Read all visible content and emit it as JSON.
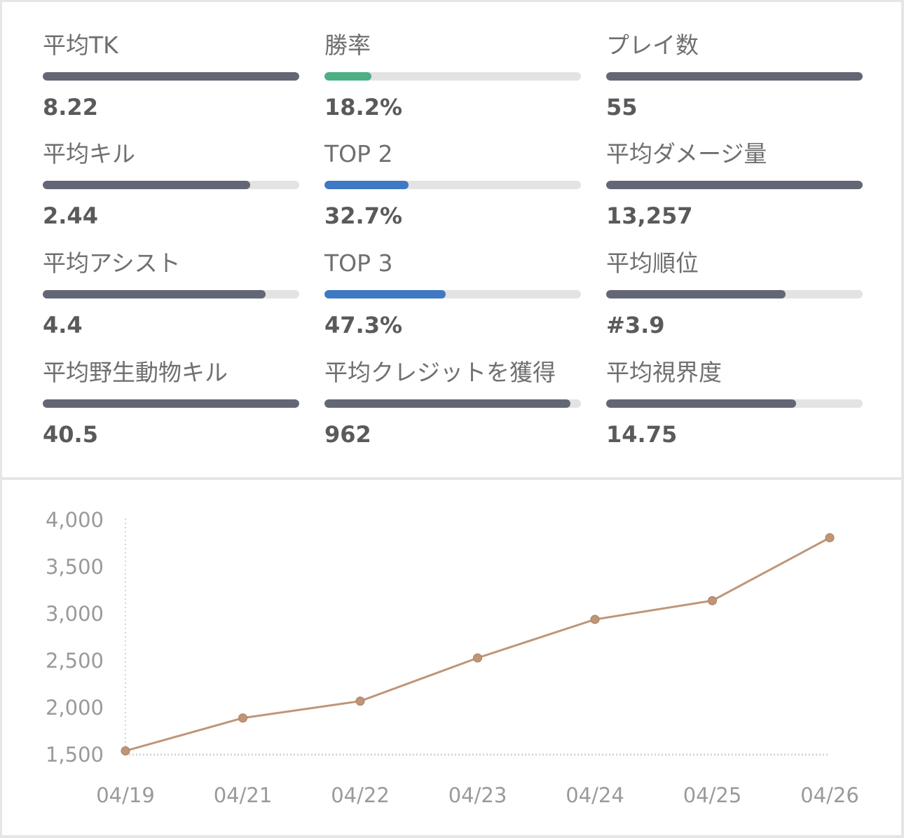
{
  "stats": [
    {
      "label": "平均TK",
      "value": "8.22",
      "fill": 1.0,
      "color": "#636675"
    },
    {
      "label": "勝率",
      "value": "18.2%",
      "fill": 0.182,
      "color": "#4caf85"
    },
    {
      "label": "プレイ数",
      "value": "55",
      "fill": 1.0,
      "color": "#636675"
    },
    {
      "label": "平均キル",
      "value": "2.44",
      "fill": 0.81,
      "color": "#636675"
    },
    {
      "label": "TOP 2",
      "value": "32.7%",
      "fill": 0.327,
      "color": "#3f78c3"
    },
    {
      "label": "平均ダメージ量",
      "value": "13,257",
      "fill": 1.0,
      "color": "#636675"
    },
    {
      "label": "平均アシスト",
      "value": "4.4",
      "fill": 0.87,
      "color": "#636675"
    },
    {
      "label": "TOP 3",
      "value": "47.3%",
      "fill": 0.473,
      "color": "#3f78c3"
    },
    {
      "label": "平均順位",
      "value": "#3.9",
      "fill": 0.7,
      "color": "#636675"
    },
    {
      "label": "平均野生動物キル",
      "value": "40.5",
      "fill": 1.0,
      "color": "#636675"
    },
    {
      "label": "平均クレジットを獲得",
      "value": "962",
      "fill": 0.96,
      "color": "#636675"
    },
    {
      "label": "平均視界度",
      "value": "14.75",
      "fill": 0.74,
      "color": "#636675"
    }
  ],
  "chart_data": {
    "type": "line",
    "categories": [
      "04/19",
      "04/21",
      "04/22",
      "04/23",
      "04/24",
      "04/25",
      "04/26"
    ],
    "series": [
      {
        "values": [
          1540,
          1890,
          2070,
          2530,
          2940,
          3140,
          3810
        ]
      }
    ],
    "yticks": [
      "1,500",
      "2,000",
      "2,500",
      "3,000",
      "3,500",
      "4,000"
    ],
    "ylim": [
      1500,
      4000
    ],
    "line_color": "#c09577",
    "grid": false
  }
}
